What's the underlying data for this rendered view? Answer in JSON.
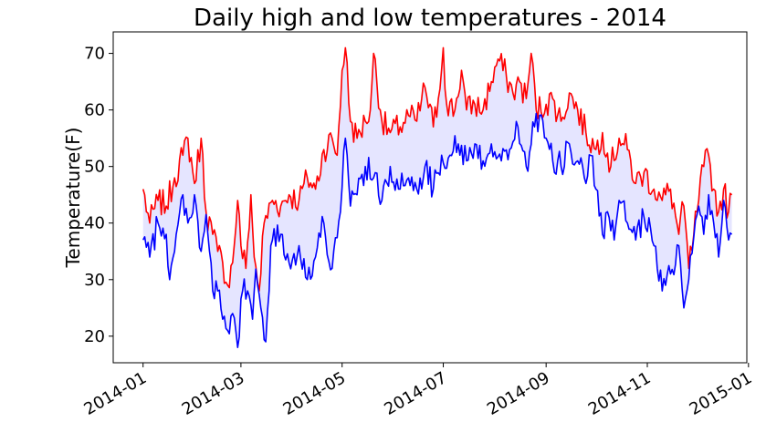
{
  "chart_data": {
    "type": "line",
    "title": "Daily high and low temperatures - 2014",
    "xlabel": "",
    "ylabel": "Temperature(F)",
    "ylim": [
      15.3,
      73.8
    ],
    "xlim": [
      "2013-12-14",
      "2014-12-31"
    ],
    "x_ticks": [
      "2014-01",
      "2014-03",
      "2014-05",
      "2014-07",
      "2014-09",
      "2014-11",
      "2015-01"
    ],
    "y_ticks": [
      20,
      30,
      40,
      50,
      60,
      70
    ],
    "grid": false,
    "legend": "none",
    "fill_between": {
      "color": "#0000ff",
      "opacity": 0.1
    },
    "series": [
      {
        "color": "#ff0000",
        "points": [
          [
            "2014-01-01",
            46
          ],
          [
            "2014-01-05",
            40
          ],
          [
            "2014-01-10",
            44
          ],
          [
            "2014-01-15",
            43
          ],
          [
            "2014-01-20",
            48
          ],
          [
            "2014-01-25",
            52
          ],
          [
            "2014-01-28",
            55
          ],
          [
            "2014-02-01",
            47
          ],
          [
            "2014-02-05",
            55
          ],
          [
            "2014-02-08",
            42
          ],
          [
            "2014-02-12",
            38
          ],
          [
            "2014-02-15",
            35
          ],
          [
            "2014-02-18",
            33
          ],
          [
            "2014-02-21",
            29
          ],
          [
            "2014-02-24",
            33
          ],
          [
            "2014-02-27",
            44
          ],
          [
            "2014-03-01",
            36
          ],
          [
            "2014-03-04",
            32
          ],
          [
            "2014-03-07",
            45
          ],
          [
            "2014-03-09",
            34
          ],
          [
            "2014-03-12",
            28
          ],
          [
            "2014-03-15",
            40
          ],
          [
            "2014-03-20",
            44
          ],
          [
            "2014-03-25",
            43
          ],
          [
            "2014-03-30",
            45
          ],
          [
            "2014-04-05",
            44
          ],
          [
            "2014-04-10",
            48
          ],
          [
            "2014-04-15",
            46
          ],
          [
            "2014-04-20",
            53
          ],
          [
            "2014-04-25",
            55
          ],
          [
            "2014-04-28",
            52
          ],
          [
            "2014-05-01",
            67
          ],
          [
            "2014-05-03",
            71
          ],
          [
            "2014-05-06",
            58
          ],
          [
            "2014-05-10",
            55
          ],
          [
            "2014-05-15",
            58
          ],
          [
            "2014-05-18",
            60
          ],
          [
            "2014-05-20",
            70
          ],
          [
            "2014-05-25",
            58
          ],
          [
            "2014-05-30",
            56
          ],
          [
            "2014-06-05",
            57
          ],
          [
            "2014-06-10",
            59
          ],
          [
            "2014-06-15",
            58
          ],
          [
            "2014-06-20",
            64
          ],
          [
            "2014-06-25",
            57
          ],
          [
            "2014-06-28",
            62
          ],
          [
            "2014-07-01",
            71
          ],
          [
            "2014-07-03",
            61
          ],
          [
            "2014-07-08",
            60
          ],
          [
            "2014-07-12",
            67
          ],
          [
            "2014-07-15",
            60
          ],
          [
            "2014-07-20",
            61
          ],
          [
            "2014-07-25",
            60
          ],
          [
            "2014-07-30",
            65
          ],
          [
            "2014-08-03",
            69
          ],
          [
            "2014-08-08",
            66
          ],
          [
            "2014-08-12",
            63
          ],
          [
            "2014-08-16",
            65
          ],
          [
            "2014-08-20",
            62
          ],
          [
            "2014-08-23",
            70
          ],
          [
            "2014-08-26",
            60
          ],
          [
            "2014-09-01",
            61
          ],
          [
            "2014-09-05",
            62
          ],
          [
            "2014-09-10",
            58
          ],
          [
            "2014-09-15",
            63
          ],
          [
            "2014-09-20",
            60
          ],
          [
            "2014-09-25",
            56
          ],
          [
            "2014-10-01",
            53
          ],
          [
            "2014-10-05",
            56
          ],
          [
            "2014-10-10",
            50
          ],
          [
            "2014-10-15",
            55
          ],
          [
            "2014-10-20",
            53
          ],
          [
            "2014-10-25",
            47
          ],
          [
            "2014-10-30",
            49
          ],
          [
            "2014-11-05",
            46
          ],
          [
            "2014-11-10",
            44
          ],
          [
            "2014-11-15",
            46
          ],
          [
            "2014-11-20",
            38
          ],
          [
            "2014-11-23",
            43
          ],
          [
            "2014-11-26",
            32
          ],
          [
            "2014-11-29",
            38
          ],
          [
            "2014-12-02",
            44
          ],
          [
            "2014-12-05",
            50
          ],
          [
            "2014-12-08",
            52
          ],
          [
            "2014-12-11",
            46
          ],
          [
            "2014-12-14",
            42
          ],
          [
            "2014-12-17",
            46
          ],
          [
            "2014-12-20",
            42
          ],
          [
            "2014-12-22",
            45
          ]
        ]
      },
      {
        "color": "#0000ff",
        "points": [
          [
            "2014-01-01",
            37
          ],
          [
            "2014-01-05",
            34
          ],
          [
            "2014-01-10",
            40
          ],
          [
            "2014-01-15",
            38
          ],
          [
            "2014-01-17",
            30
          ],
          [
            "2014-01-20",
            35
          ],
          [
            "2014-01-25",
            45
          ],
          [
            "2014-01-28",
            40
          ],
          [
            "2014-02-01",
            45
          ],
          [
            "2014-02-05",
            35
          ],
          [
            "2014-02-08",
            42
          ],
          [
            "2014-02-12",
            28
          ],
          [
            "2014-02-15",
            28
          ],
          [
            "2014-02-18",
            23
          ],
          [
            "2014-02-21",
            21
          ],
          [
            "2014-02-24",
            24
          ],
          [
            "2014-02-27",
            18
          ],
          [
            "2014-03-02",
            28
          ],
          [
            "2014-03-05",
            28
          ],
          [
            "2014-03-08",
            23
          ],
          [
            "2014-03-10",
            34
          ],
          [
            "2014-03-13",
            25
          ],
          [
            "2014-03-16",
            19
          ],
          [
            "2014-03-19",
            36
          ],
          [
            "2014-03-25",
            38
          ],
          [
            "2014-03-30",
            33
          ],
          [
            "2014-04-05",
            36
          ],
          [
            "2014-04-10",
            30
          ],
          [
            "2014-04-15",
            34
          ],
          [
            "2014-04-20",
            40
          ],
          [
            "2014-04-25",
            32
          ],
          [
            "2014-04-30",
            42
          ],
          [
            "2014-05-03",
            55
          ],
          [
            "2014-05-06",
            43
          ],
          [
            "2014-05-10",
            45
          ],
          [
            "2014-05-15",
            50
          ],
          [
            "2014-05-20",
            48
          ],
          [
            "2014-05-25",
            44
          ],
          [
            "2014-05-30",
            50
          ],
          [
            "2014-06-05",
            46
          ],
          [
            "2014-06-10",
            48
          ],
          [
            "2014-06-15",
            46
          ],
          [
            "2014-06-20",
            50
          ],
          [
            "2014-06-25",
            46
          ],
          [
            "2014-06-30",
            52
          ],
          [
            "2014-07-05",
            52
          ],
          [
            "2014-07-10",
            54
          ],
          [
            "2014-07-15",
            51
          ],
          [
            "2014-07-20",
            54
          ],
          [
            "2014-07-25",
            51
          ],
          [
            "2014-07-30",
            54
          ],
          [
            "2014-08-05",
            51
          ],
          [
            "2014-08-10",
            53
          ],
          [
            "2014-08-15",
            57
          ],
          [
            "2014-08-20",
            50
          ],
          [
            "2014-08-25",
            57
          ],
          [
            "2014-08-28",
            59
          ],
          [
            "2014-09-01",
            55
          ],
          [
            "2014-09-05",
            51
          ],
          [
            "2014-09-10",
            50
          ],
          [
            "2014-09-15",
            54
          ],
          [
            "2014-09-20",
            51
          ],
          [
            "2014-09-25",
            47
          ],
          [
            "2014-09-28",
            52
          ],
          [
            "2014-10-01",
            46
          ],
          [
            "2014-10-05",
            38
          ],
          [
            "2014-10-08",
            42
          ],
          [
            "2014-10-12",
            37
          ],
          [
            "2014-10-15",
            44
          ],
          [
            "2014-10-20",
            40
          ],
          [
            "2014-10-25",
            37
          ],
          [
            "2014-10-30",
            41
          ],
          [
            "2014-11-05",
            36
          ],
          [
            "2014-11-10",
            28
          ],
          [
            "2014-11-15",
            31
          ],
          [
            "2014-11-20",
            36
          ],
          [
            "2014-11-23",
            25
          ],
          [
            "2014-11-26",
            30
          ],
          [
            "2014-11-29",
            40
          ],
          [
            "2014-12-02",
            43
          ],
          [
            "2014-12-05",
            38
          ],
          [
            "2014-12-08",
            45
          ],
          [
            "2014-12-11",
            40
          ],
          [
            "2014-12-14",
            34
          ],
          [
            "2014-12-17",
            44
          ],
          [
            "2014-12-20",
            37
          ],
          [
            "2014-12-22",
            38
          ]
        ]
      }
    ]
  }
}
